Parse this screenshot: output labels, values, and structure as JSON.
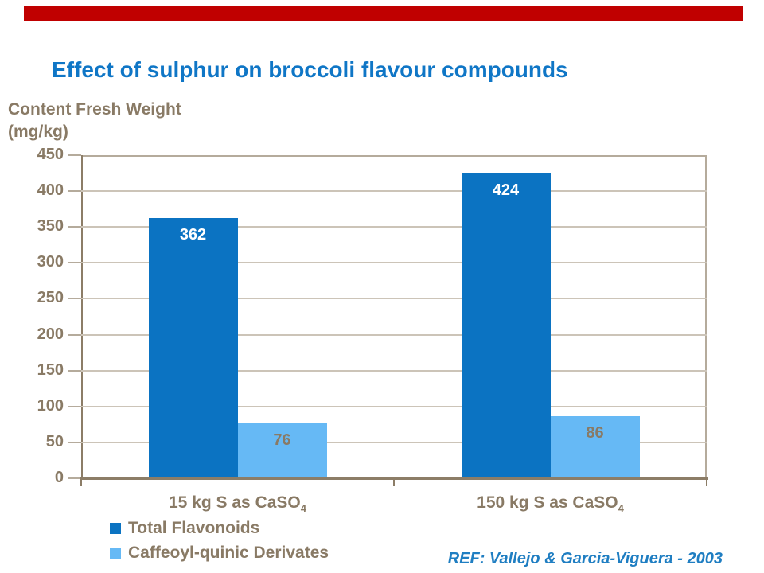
{
  "slide": {
    "title": "Effect of sulphur on broccoli flavour compounds",
    "reference": "REF: Vallejo & Garcia-Viguera - 2003"
  },
  "colors": {
    "accent_bar": "#C00000",
    "title_blue": "#0F76C6",
    "label_brown": "#897A65",
    "gridline": "#CCC4B8",
    "axis_dark": "#8C7D67",
    "axis_light": "#B5AB9C",
    "ref_blue": "#1F7EC2"
  },
  "chart_data": {
    "type": "bar",
    "title": "Effect of sulphur on broccoli flavour compounds",
    "xlabel": "",
    "ylabel": "Content Fresh Weight (mg/kg)",
    "ylabel_lines": [
      "Content Fresh Weight",
      "(mg/kg)"
    ],
    "categories": [
      "15 kg S as CaSO₄",
      "150 kg S as CaSO₄"
    ],
    "series": [
      {
        "name": "Total Flavonoids",
        "color": "#0B73C2",
        "label_color": "#FFFFFF",
        "values": [
          362,
          424
        ]
      },
      {
        "name": "Caffeoyl-quinic Derivates",
        "color": "#66B9F5",
        "label_color": "#897A65",
        "values": [
          76,
          86
        ]
      }
    ],
    "ylim": [
      0,
      450
    ],
    "ytick_step": 50,
    "yticks": [
      0,
      50,
      100,
      150,
      200,
      250,
      300,
      350,
      400,
      450
    ],
    "grid": true,
    "legend_position": "bottom-left"
  }
}
